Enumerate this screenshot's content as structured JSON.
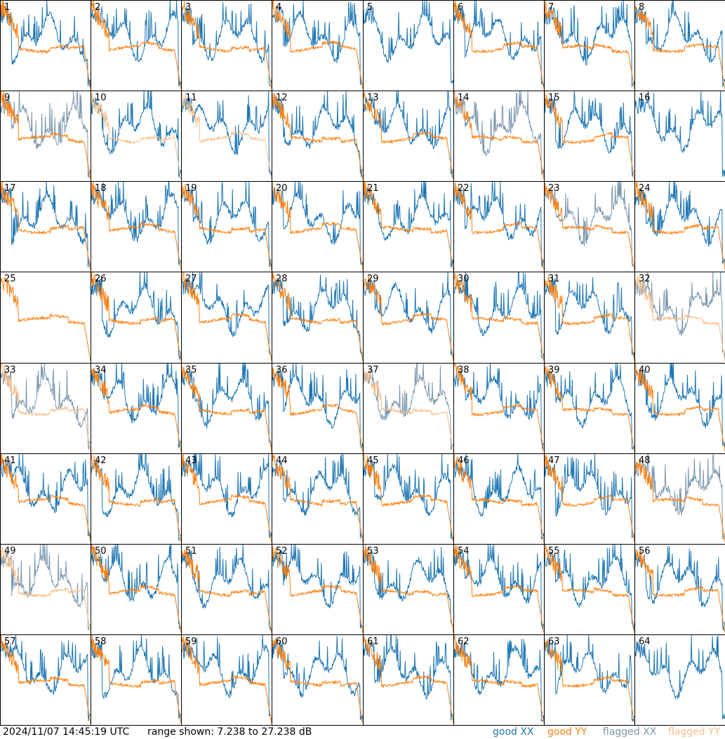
{
  "figure": {
    "timestamp": "2024/11/07 14:45:19 UTC",
    "range_text": "range shown: 7.238 to 27.238 dB"
  },
  "legend": [
    {
      "label": "good XX",
      "color": "#1f77b4"
    },
    {
      "label": "good YY",
      "color": "#ff7f0e"
    },
    {
      "label": "flagged XX",
      "color": "#7a96ad"
    },
    {
      "label": "flagged YY",
      "color": "#f7be8b"
    }
  ],
  "chart_data": {
    "type": "line",
    "ylim": [
      7.238,
      27.238
    ],
    "panel_ids": [
      "1",
      "2",
      "3",
      "4",
      "5",
      "6",
      "7",
      "8",
      "9",
      "10",
      "11",
      "12",
      "13",
      "14",
      "15",
      "16",
      "17",
      "18",
      "19",
      "20",
      "21",
      "22",
      "23",
      "24",
      "25",
      "26",
      "27",
      "28",
      "29",
      "30",
      "31",
      "32",
      "33",
      "34",
      "35",
      "36",
      "37",
      "38",
      "39",
      "40",
      "41",
      "42",
      "43",
      "44",
      "45",
      "46",
      "47",
      "48",
      "49",
      "50",
      "51",
      "52",
      "53",
      "54",
      "55",
      "56",
      "57",
      "58",
      "59",
      "60",
      "61",
      "62",
      "63",
      "64"
    ],
    "flagged_xx_panels": [
      "9",
      "14",
      "23",
      "32",
      "33",
      "37",
      "48",
      "49"
    ],
    "flagged_yy_panels": [
      "10",
      "11",
      "32",
      "33",
      "37",
      "49"
    ],
    "missing_xx_panels": [
      "25"
    ],
    "missing_yy_panels": [
      "5",
      "16",
      "64"
    ],
    "note_values": "approximate per-panel spectra shapes; values in dB within ylim"
  }
}
